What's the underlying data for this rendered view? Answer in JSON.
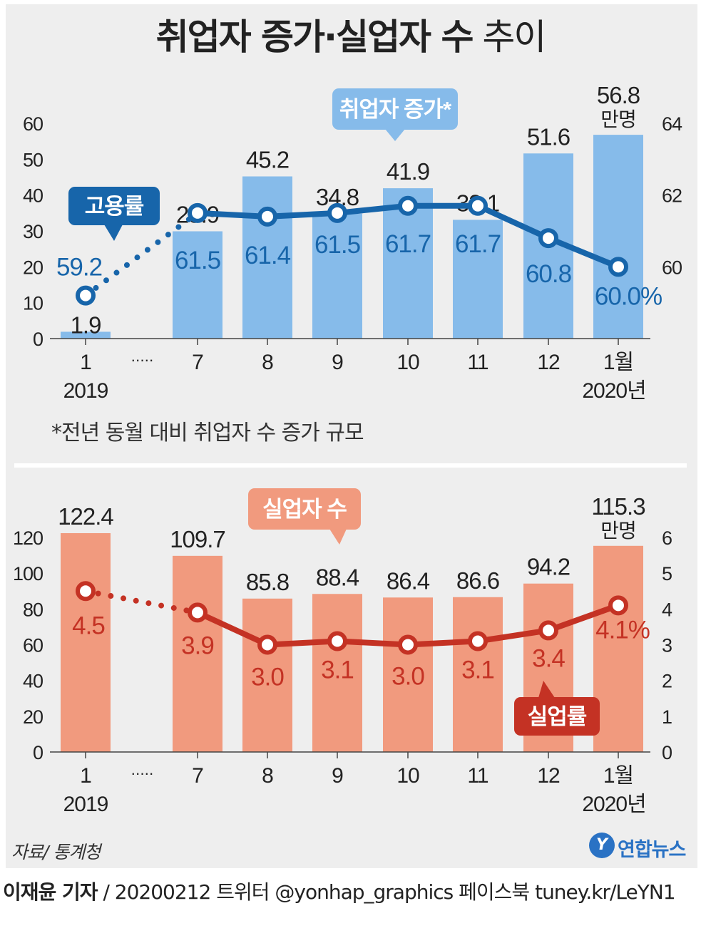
{
  "title": {
    "bold": "취업자 증가·실업자 수",
    "rest": "추이"
  },
  "colors": {
    "bar_blue": "#86bbea",
    "line_blue": "#1765aa",
    "bar_red": "#f19a7e",
    "line_red": "#c43224",
    "badge_blue": "#1765aa",
    "badge_red": "#c43224",
    "label_blue_bg": "#86bbea",
    "label_red_bg": "#f19a7e"
  },
  "x_axis": {
    "categories": [
      "1",
      "7",
      "8",
      "9",
      "10",
      "11",
      "12",
      "1월"
    ],
    "gap_marker": "·····",
    "year_start": "2019",
    "year_end": "2020년"
  },
  "chart_data": [
    {
      "type": "bar",
      "title": "취업자 증가",
      "unit": "만명",
      "categories": [
        "1",
        "7",
        "8",
        "9",
        "10",
        "11",
        "12",
        "1월"
      ],
      "values": [
        1.9,
        29.9,
        45.2,
        34.8,
        41.9,
        33.1,
        51.6,
        56.8
      ],
      "ylim": [
        0,
        60
      ],
      "yticks": [
        "0",
        "10",
        "20",
        "30",
        "40",
        "50",
        "60"
      ],
      "badge": "취업자 증가*",
      "series": [
        {
          "name": "고용률",
          "type": "line",
          "axis": "right",
          "values": [
            59.2,
            61.5,
            61.4,
            61.5,
            61.7,
            61.7,
            60.8,
            60.0
          ],
          "labels": [
            "59.2",
            "61.5",
            "61.4",
            "61.5",
            "61.7",
            "61.7",
            "60.8",
            "60.0%"
          ],
          "ylim": [
            58,
            64
          ],
          "yticks": [
            "60",
            "62",
            "64"
          ]
        }
      ],
      "footnote": "*전년 동월 대비 취업자 수 증가 규모"
    },
    {
      "type": "bar",
      "title": "실업자 수",
      "unit": "만명",
      "categories": [
        "1",
        "7",
        "8",
        "9",
        "10",
        "11",
        "12",
        "1월"
      ],
      "values": [
        122.4,
        109.7,
        85.8,
        88.4,
        86.4,
        86.6,
        94.2,
        115.3
      ],
      "ylim": [
        0,
        120
      ],
      "yticks": [
        "0",
        "20",
        "40",
        "60",
        "80",
        "100",
        "120"
      ],
      "badge": "실업자 수",
      "series": [
        {
          "name": "실업률",
          "type": "line",
          "axis": "right",
          "values": [
            4.5,
            3.9,
            3.0,
            3.1,
            3.0,
            3.1,
            3.4,
            4.1
          ],
          "labels": [
            "4.5",
            "3.9",
            "3.0",
            "3.1",
            "3.0",
            "3.1",
            "3.4",
            "4.1%"
          ],
          "ylim": [
            0,
            6
          ],
          "yticks": [
            "0",
            "1",
            "2",
            "3",
            "4",
            "5",
            "6"
          ]
        }
      ]
    }
  ],
  "footer": {
    "source": "자료/ 통계청",
    "logo": "연합뉴스",
    "reporter": "이재윤 기자",
    "credit_rest": " / 20200212   트위터 @yonhap_graphics   페이스북 tuney.kr/LeYN1"
  }
}
